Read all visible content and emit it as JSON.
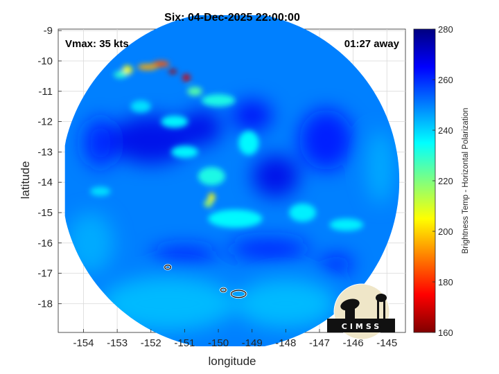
{
  "chart_data": {
    "type": "heatmap",
    "title": "Six: 04-Dec-2025 22:00:00",
    "xlabel": "longitude",
    "ylabel": "latitude",
    "xlim": [
      -154.75,
      -144.45
    ],
    "ylim": [
      -18.95,
      -8.95
    ],
    "x_ticks": [
      -154,
      -153,
      -152,
      -151,
      -150,
      -149,
      -148,
      -147,
      -146,
      -145
    ],
    "x_tick_labels": [
      "-154",
      "-153",
      "-152",
      "-151",
      "-150",
      "-149",
      "-148",
      "-147",
      "-146",
      "-145"
    ],
    "y_ticks": [
      -9,
      -10,
      -11,
      -12,
      -13,
      -14,
      -15,
      -16,
      -17,
      -18
    ],
    "y_tick_labels": [
      "-9",
      "-10",
      "-11",
      "-12",
      "-13",
      "-14",
      "-15",
      "-16",
      "-17",
      "-18"
    ],
    "grid": true,
    "annotations": {
      "vmax": "Vmax: 35 kts",
      "away": "01:27 away"
    },
    "colorbar": {
      "label": "Brightness Temp - Horizontal Polarization",
      "range": [
        160,
        280
      ],
      "ticks": [
        280,
        260,
        240,
        220,
        200,
        180,
        160
      ],
      "tick_labels": [
        "280",
        "260",
        "240",
        "220",
        "200",
        "180",
        "160"
      ],
      "colormap": "jet"
    },
    "swath": {
      "center": [
        -149.65,
        -13.95
      ],
      "radius_deg": 5.2,
      "west_clip_lon": -154.55,
      "east_clip_lon": -144.6
    },
    "background_value": 250,
    "features": [
      {
        "kind": "hot",
        "lon": -151.35,
        "lat": -10.35,
        "lon_spread": 0.12,
        "lat_spread": 0.08,
        "value": 165
      },
      {
        "kind": "hot",
        "lon": -150.95,
        "lat": -10.55,
        "lon_spread": 0.12,
        "lat_spread": 0.12,
        "value": 170
      },
      {
        "kind": "hot",
        "lon": -151.7,
        "lat": -10.1,
        "lon_spread": 0.25,
        "lat_spread": 0.1,
        "value": 185
      },
      {
        "kind": "hot",
        "lon": -152.1,
        "lat": -10.2,
        "lon_spread": 0.3,
        "lat_spread": 0.1,
        "value": 195
      },
      {
        "kind": "hot",
        "lon": -152.7,
        "lat": -10.3,
        "lon_spread": 0.15,
        "lat_spread": 0.15,
        "value": 205
      },
      {
        "kind": "hot",
        "lon": -152.9,
        "lat": -10.45,
        "lon_spread": 0.2,
        "lat_spread": 0.12,
        "value": 230
      },
      {
        "kind": "hot",
        "lon": -150.7,
        "lat": -11.0,
        "lon_spread": 0.22,
        "lat_spread": 0.15,
        "value": 225
      },
      {
        "kind": "hot",
        "lon": -150.2,
        "lat": -14.5,
        "lon_spread": 0.1,
        "lat_spread": 0.15,
        "value": 205
      },
      {
        "kind": "hot",
        "lon": -150.3,
        "lat": -14.7,
        "lon_spread": 0.12,
        "lat_spread": 0.12,
        "value": 215
      },
      {
        "kind": "warm",
        "lon": -150.0,
        "lat": -11.3,
        "lon_spread": 0.5,
        "lat_spread": 0.2,
        "value": 232
      },
      {
        "kind": "warm",
        "lon": -151.3,
        "lat": -12.0,
        "lon_spread": 0.4,
        "lat_spread": 0.2,
        "value": 235
      },
      {
        "kind": "warm",
        "lon": -151.0,
        "lat": -13.0,
        "lon_spread": 0.4,
        "lat_spread": 0.2,
        "value": 235
      },
      {
        "kind": "warm",
        "lon": -149.1,
        "lat": -12.7,
        "lon_spread": 0.3,
        "lat_spread": 0.4,
        "value": 235
      },
      {
        "kind": "warm",
        "lon": -150.2,
        "lat": -13.8,
        "lon_spread": 0.4,
        "lat_spread": 0.3,
        "value": 232
      },
      {
        "kind": "warm",
        "lon": -149.5,
        "lat": -15.2,
        "lon_spread": 0.8,
        "lat_spread": 0.3,
        "value": 235
      },
      {
        "kind": "warm",
        "lon": -147.5,
        "lat": -15.0,
        "lon_spread": 0.4,
        "lat_spread": 0.3,
        "value": 236
      },
      {
        "kind": "warm",
        "lon": -146.2,
        "lat": -15.4,
        "lon_spread": 0.5,
        "lat_spread": 0.2,
        "value": 236
      },
      {
        "kind": "warm",
        "lon": -152.3,
        "lat": -11.5,
        "lon_spread": 0.3,
        "lat_spread": 0.2,
        "value": 238
      },
      {
        "kind": "warm",
        "lon": -153.5,
        "lat": -14.3,
        "lon_spread": 0.3,
        "lat_spread": 0.15,
        "value": 238
      },
      {
        "kind": "cold",
        "lon": -152.0,
        "lat": -12.6,
        "lon_spread": 1.2,
        "lat_spread": 0.8,
        "value": 268
      },
      {
        "kind": "cold",
        "lon": -150.5,
        "lat": -12.2,
        "lon_spread": 0.6,
        "lat_spread": 0.6,
        "value": 268
      },
      {
        "kind": "cold",
        "lon": -148.3,
        "lat": -13.8,
        "lon_spread": 0.7,
        "lat_spread": 0.7,
        "value": 268
      },
      {
        "kind": "cold",
        "lon": -149.0,
        "lat": -11.8,
        "lon_spread": 0.6,
        "lat_spread": 0.5,
        "value": 266
      },
      {
        "kind": "cold",
        "lon": -146.8,
        "lat": -12.6,
        "lon_spread": 0.8,
        "lat_spread": 1.0,
        "value": 264
      },
      {
        "kind": "cold",
        "lon": -151.0,
        "lat": -16.4,
        "lon_spread": 1.0,
        "lat_spread": 0.3,
        "value": 262
      },
      {
        "kind": "cold",
        "lon": -148.5,
        "lat": -16.2,
        "lon_spread": 1.2,
        "lat_spread": 0.35,
        "value": 262
      },
      {
        "kind": "cold",
        "lon": -153.5,
        "lat": -12.7,
        "lon_spread": 0.5,
        "lat_spread": 0.8,
        "value": 262
      },
      {
        "kind": "cold",
        "lon": -146.5,
        "lat": -16.7,
        "lon_spread": 0.5,
        "lat_spread": 0.3,
        "value": 264
      },
      {
        "kind": "cool",
        "lon": -151.5,
        "lat": -18.0,
        "lon_spread": 2.0,
        "lat_spread": 0.9,
        "value": 242
      },
      {
        "kind": "cool",
        "lon": -148.0,
        "lat": -18.0,
        "lon_spread": 1.5,
        "lat_spread": 0.8,
        "value": 242
      },
      {
        "kind": "cool",
        "lon": -153.8,
        "lat": -16.0,
        "lon_spread": 0.7,
        "lat_spread": 1.0,
        "value": 244
      },
      {
        "kind": "cool",
        "lon": -145.2,
        "lat": -13.5,
        "lon_spread": 0.4,
        "lat_spread": 1.2,
        "value": 244
      }
    ],
    "islands": [
      {
        "lon": -151.5,
        "lat": -16.8,
        "rx": 0.09,
        "ry": 0.07
      },
      {
        "lon": -149.85,
        "lat": -17.55,
        "rx": 0.08,
        "ry": 0.06
      },
      {
        "lon": -149.4,
        "lat": -17.68,
        "rx": 0.22,
        "ry": 0.12
      }
    ],
    "logo_text": "CIMSS"
  }
}
